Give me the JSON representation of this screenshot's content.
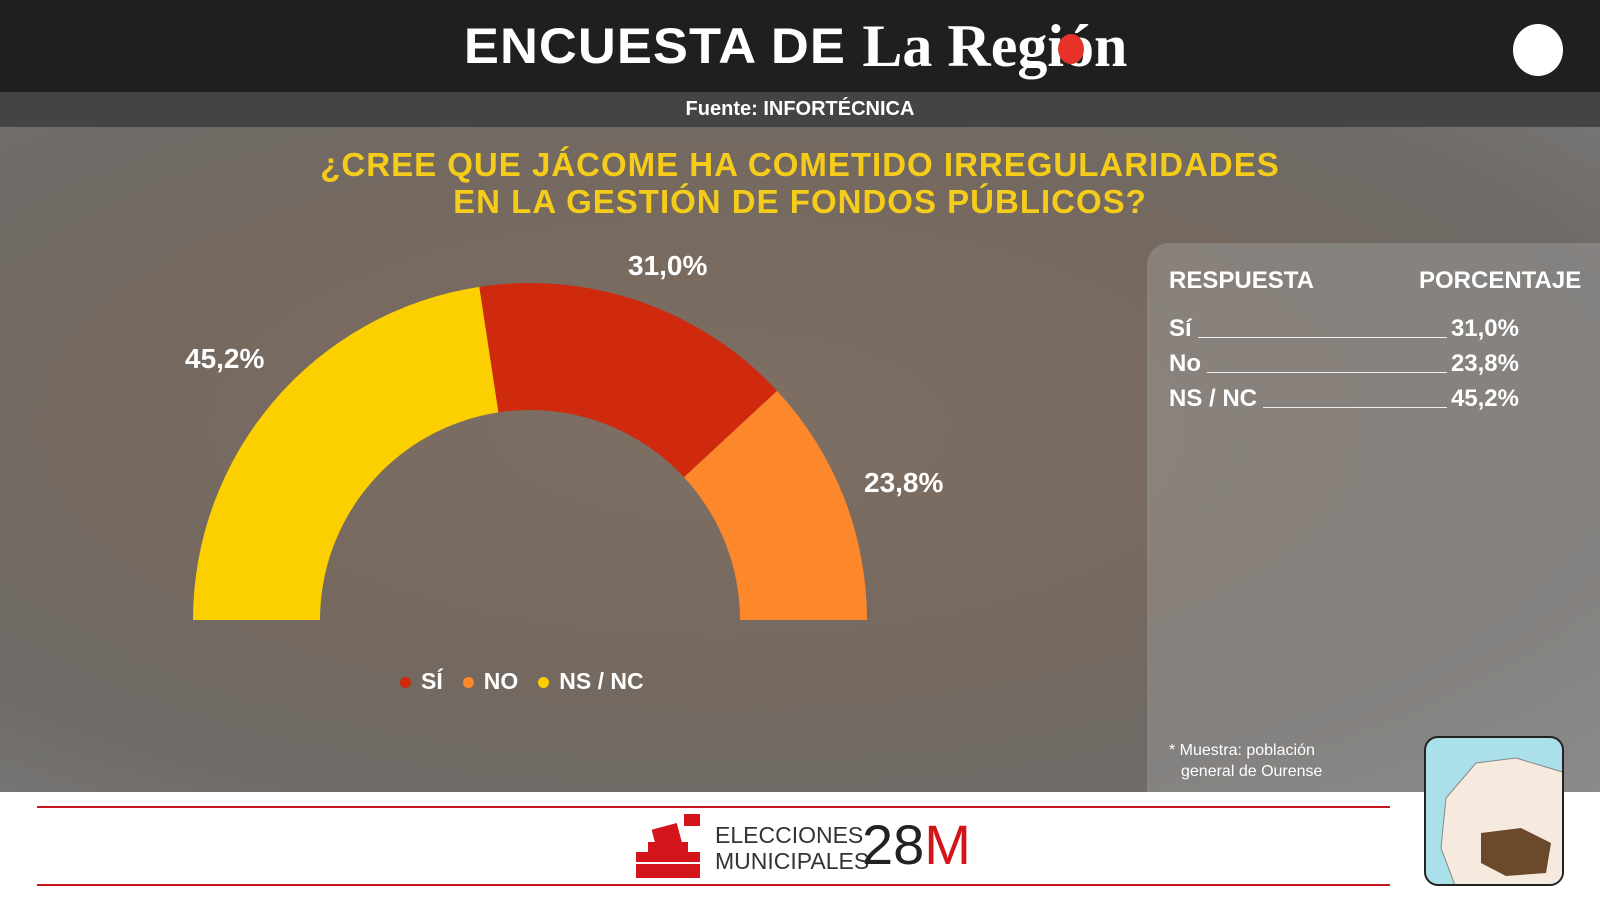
{
  "header": {
    "title_prefix": "ENCUESTA DE",
    "logo": "La Región",
    "source": "Fuente: INFORTÉCNICA"
  },
  "question": {
    "line1": "¿CREE QUE JÁCOME HA COMETIDO IRREGULARIDADES",
    "line2": "EN LA GESTIÓN DE FONDOS PÚBLICOS?"
  },
  "chart_data": {
    "type": "pie",
    "variant": "half-donut",
    "categories": [
      "NS / NC",
      "SÍ",
      "NO"
    ],
    "values": [
      45.2,
      31.0,
      23.8
    ],
    "labels": [
      "45,2%",
      "31,0%",
      "23,8%"
    ],
    "colors": [
      "#fccf00",
      "#cf2a0e",
      "#fd872b"
    ],
    "legend": [
      {
        "label": "SÍ",
        "color": "#cf2a0e"
      },
      {
        "label": "NO",
        "color": "#fd872b"
      },
      {
        "label": "NS / NC",
        "color": "#fccf00"
      }
    ],
    "legend_position": "bottom"
  },
  "table": {
    "col1": "RESPUESTA",
    "col2": "PORCENTAJE",
    "rows": [
      {
        "label": "Sí",
        "value": "31,0%"
      },
      {
        "label": "No",
        "value": "23,8%"
      },
      {
        "label": "NS / NC",
        "value": "45,2%"
      }
    ],
    "note1": "*  Muestra: población",
    "note2": "general de Ourense"
  },
  "footer": {
    "line1": "ELECCIONES",
    "line2": "MUNICIPALES",
    "date_num": "28",
    "date_m": "M"
  }
}
